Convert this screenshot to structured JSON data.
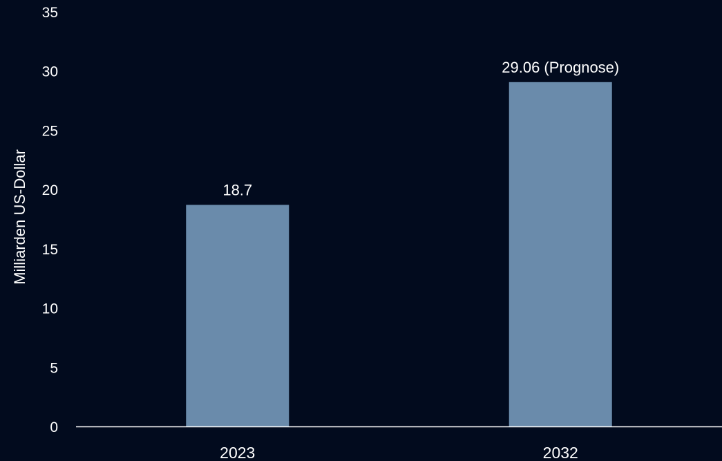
{
  "chart_data": {
    "type": "bar",
    "categories": [
      "2023",
      "2032"
    ],
    "values": [
      18.7,
      29.06
    ],
    "data_labels": [
      "18.7",
      "29.06 (Prognose)"
    ],
    "ylabel": "Milliarden US-Dollar",
    "xlabel": "",
    "ylim": [
      0,
      35
    ],
    "yticks": [
      0,
      5,
      10,
      15,
      20,
      25,
      30,
      35
    ],
    "grid": false,
    "legend": "none",
    "colors": {
      "background": "#020b1e",
      "bar": "#6a8bab",
      "text": "#ffffff",
      "axis": "#ffffff"
    }
  }
}
